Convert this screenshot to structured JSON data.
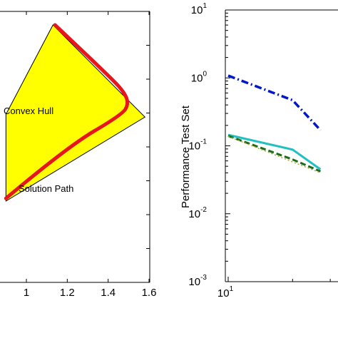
{
  "chart_data": [
    {
      "type": "area",
      "xlim": [
        0.9,
        1.6
      ],
      "x_ticks": [
        "1",
        "1.2",
        "1.4",
        "1.6"
      ],
      "annotations": [
        "Convex Hull",
        "Solution Path"
      ],
      "colors": {
        "hull_fill": "#ffff00",
        "hull_edge": "#000000",
        "path": "#e8151b"
      },
      "hull": [
        [
          0.9,
          0.62
        ],
        [
          1.13,
          0.95
        ],
        [
          1.58,
          0.61
        ],
        [
          0.9,
          0.3
        ]
      ],
      "solution_path": [
        [
          0.9,
          0.31
        ],
        [
          1.2,
          0.5
        ],
        [
          1.47,
          0.62
        ],
        [
          1.5,
          0.66
        ],
        [
          1.48,
          0.7
        ],
        [
          1.42,
          0.75
        ],
        [
          1.14,
          0.95
        ]
      ],
      "grid": false
    },
    {
      "type": "line",
      "xscale": "log",
      "yscale": "log",
      "xlim": [
        8,
        60
      ],
      "ylim": [
        0.001,
        10
      ],
      "ylabel": "Performance Test Set",
      "y_ticks": [
        {
          "base": "10",
          "exp": "1",
          "value": 10
        },
        {
          "base": "10",
          "exp": "0",
          "value": 1
        },
        {
          "base": "10",
          "exp": "-1",
          "value": 0.1
        },
        {
          "base": "10",
          "exp": "-2",
          "value": 0.01
        },
        {
          "base": "10",
          "exp": "-3",
          "value": 0.001
        }
      ],
      "x_ticks": [
        {
          "base": "10",
          "exp": "1",
          "value": 10
        }
      ],
      "series": [
        {
          "style": "dash-dot",
          "color": "#0018c8",
          "x": [
            10,
            20,
            27
          ],
          "y": [
            1.08,
            0.47,
            0.17
          ]
        },
        {
          "style": "solid",
          "color": "#22c0c0",
          "x": [
            10,
            20,
            27
          ],
          "y": [
            0.145,
            0.088,
            0.045
          ]
        },
        {
          "style": "dashed",
          "color": "#1a6e1a",
          "x": [
            10,
            20,
            27
          ],
          "y": [
            0.14,
            0.063,
            0.042
          ]
        },
        {
          "style": "dotted",
          "color": "#b9a23a",
          "x": [
            10,
            20,
            27
          ],
          "y": [
            0.138,
            0.058,
            0.04
          ]
        }
      ],
      "grid": false
    }
  ]
}
